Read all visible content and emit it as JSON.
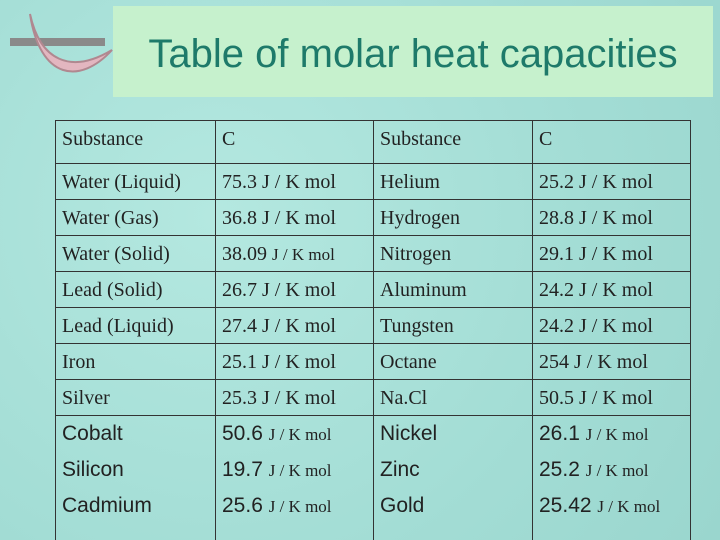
{
  "title": "Table of molar heat capacities",
  "table": {
    "header": [
      "Substance",
      "C",
      "Substance",
      "C"
    ],
    "rows": [
      [
        "Water (Liquid)",
        "75.3 J / K mol",
        "Helium",
        "25.2 J / K mol"
      ],
      [
        "Water (Gas)",
        "36.8 J / K mol",
        "Hydrogen",
        "28.8 J / K mol"
      ],
      [
        "Water (Solid)",
        {
          "value": "38.09",
          "unit": "J / K mol"
        },
        "Nitrogen",
        "29.1 J / K mol"
      ],
      [
        "Lead (Solid)",
        "26.7 J / K mol",
        "Aluminum",
        "24.2 J / K mol"
      ],
      [
        "Lead (Liquid)",
        "27.4 J / K mol",
        "Tungsten",
        "24.2 J / K mol"
      ],
      [
        "Iron",
        "25.1 J / K mol",
        "Octane",
        "254 J / K mol"
      ],
      [
        "Silver",
        "25.3 J / K mol",
        "Na.Cl",
        "50.5 J / K mol"
      ],
      [
        "Cobalt",
        {
          "value": "50.6",
          "unit": "J / K mol"
        },
        "Nickel",
        {
          "value": "26.1",
          "unit": "J / K mol"
        }
      ],
      [
        "Silicon",
        {
          "value": "19.7",
          "unit": "J / K mol"
        },
        "Zinc",
        {
          "value": "25.2",
          "unit": "J / K mol"
        }
      ],
      [
        "Cadmium",
        {
          "value": "25.6",
          "unit": "J / K mol"
        },
        "Gold",
        {
          "value": "25.42",
          "unit": "J / K mol"
        }
      ]
    ]
  }
}
